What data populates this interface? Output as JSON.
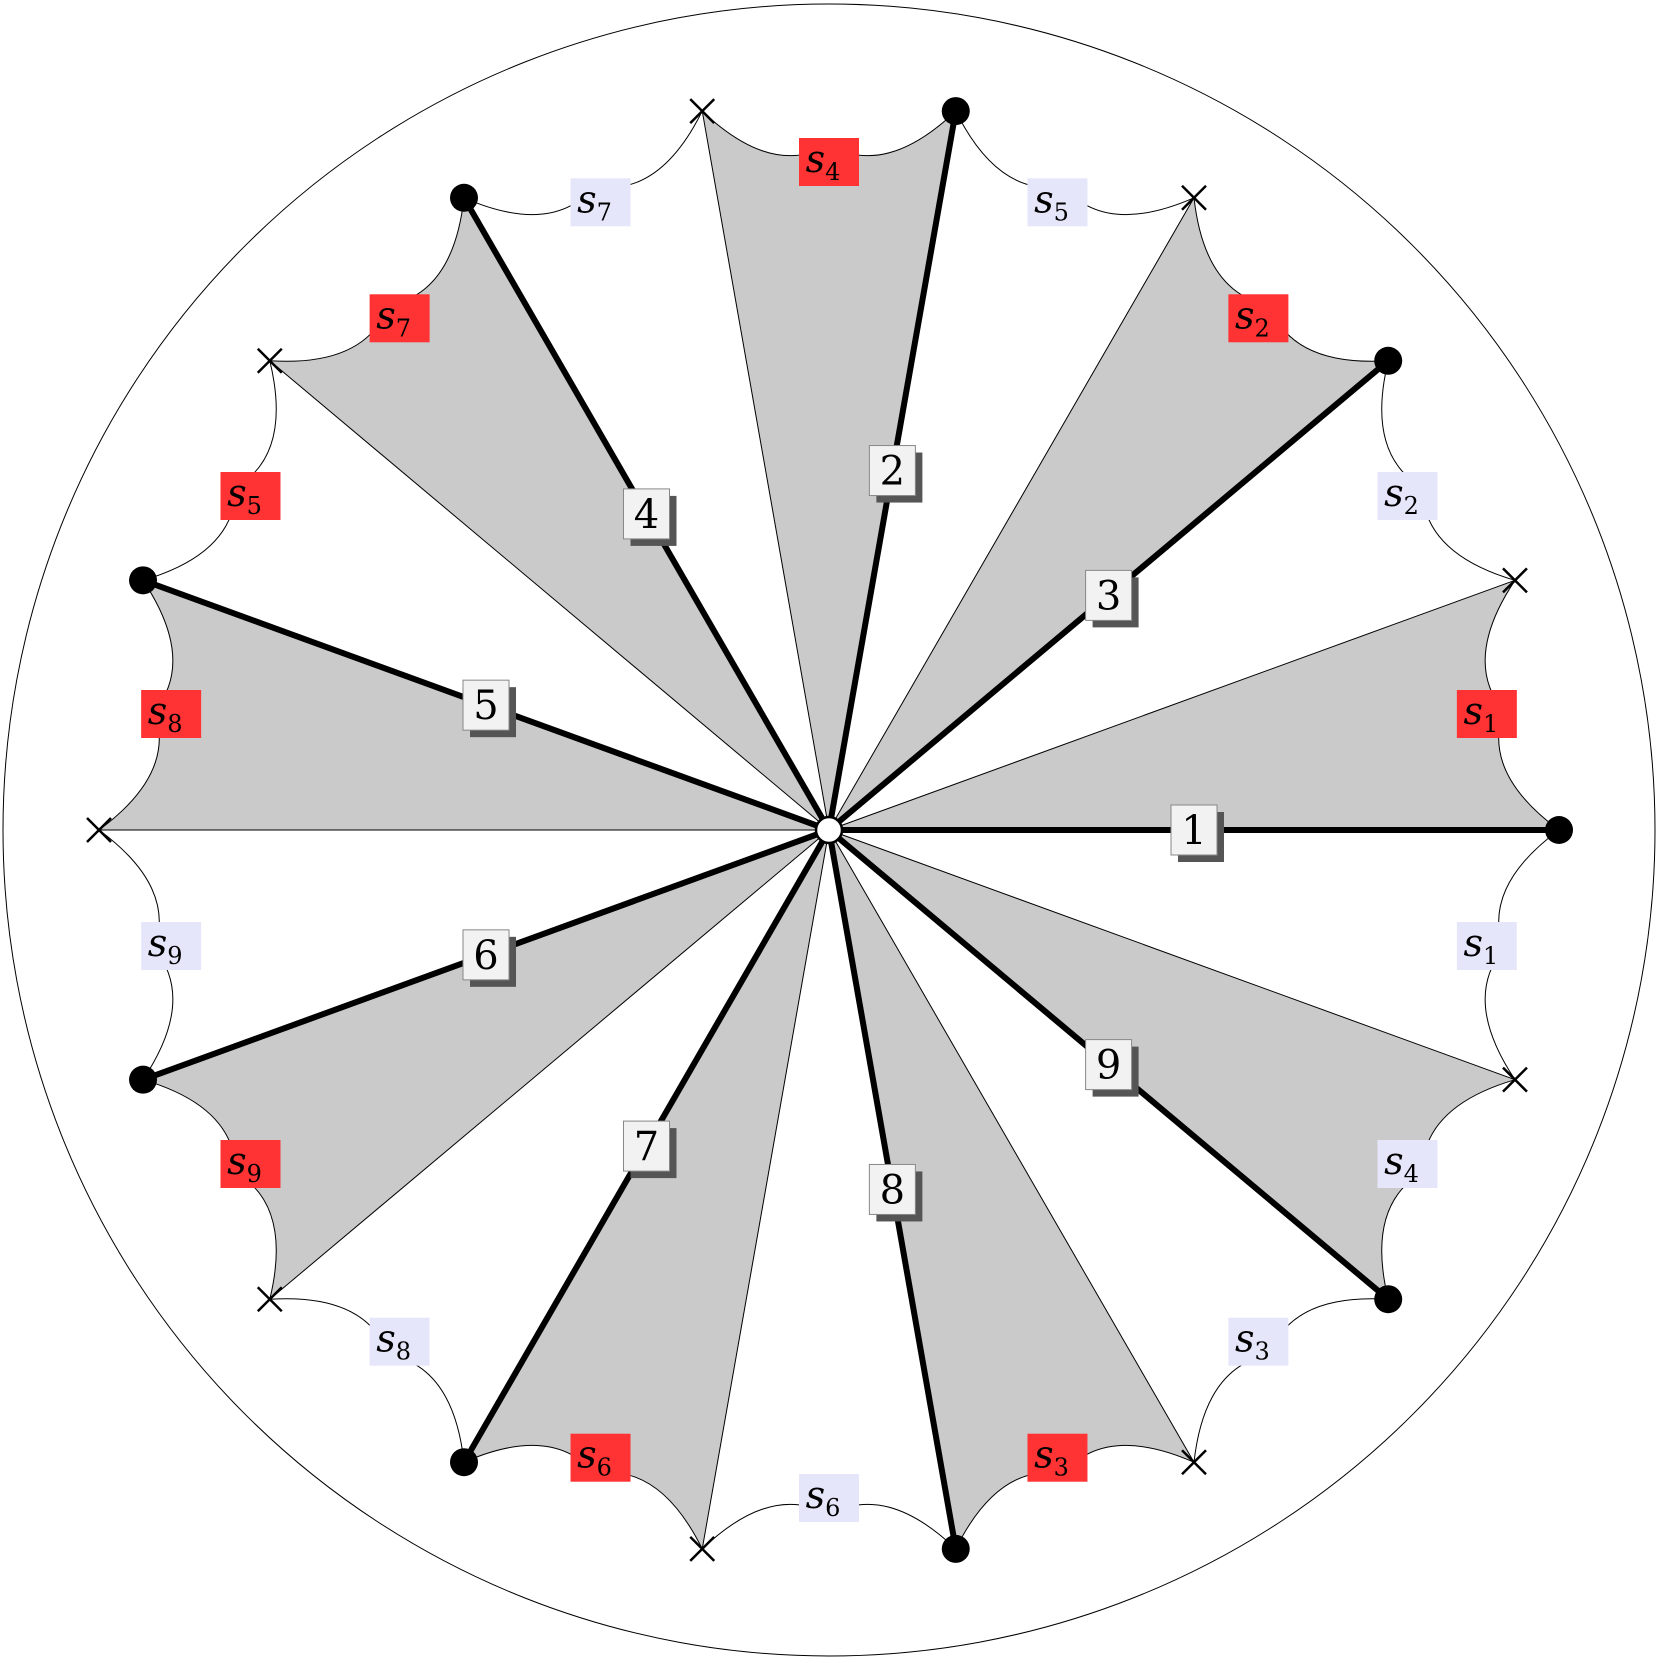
{
  "colors": {
    "sector_fill": "#cacaca",
    "red_label_bg": "#ff3333",
    "lavender_label_bg": "#e6e6fa",
    "number_box_fill": "#f2f2f2",
    "number_box_shadow": "#555555",
    "stroke": "#000000"
  },
  "arms": [
    {
      "number": "1"
    },
    {
      "number": "2"
    },
    {
      "number": "3"
    },
    {
      "number": "4"
    },
    {
      "number": "5"
    },
    {
      "number": "6"
    },
    {
      "number": "7"
    },
    {
      "number": "8"
    },
    {
      "number": "9"
    }
  ],
  "red_labels": [
    {
      "base": "s",
      "index": "1"
    },
    {
      "base": "s",
      "index": "2"
    },
    {
      "base": "s",
      "index": "4"
    },
    {
      "base": "s",
      "index": "7"
    },
    {
      "base": "s",
      "index": "5"
    },
    {
      "base": "s",
      "index": "8"
    },
    {
      "base": "s",
      "index": "9"
    },
    {
      "base": "s",
      "index": "6"
    },
    {
      "base": "s",
      "index": "3"
    }
  ],
  "lavender_labels": [
    {
      "base": "s",
      "index": "2"
    },
    {
      "base": "s",
      "index": "5"
    },
    {
      "base": "s",
      "index": "7"
    },
    {
      "base": "s",
      "index": "9"
    },
    {
      "base": "s",
      "index": "8"
    },
    {
      "base": "s",
      "index": "6"
    },
    {
      "base": "s",
      "index": "3"
    },
    {
      "base": "s",
      "index": "4"
    },
    {
      "base": "s",
      "index": "1"
    }
  ]
}
